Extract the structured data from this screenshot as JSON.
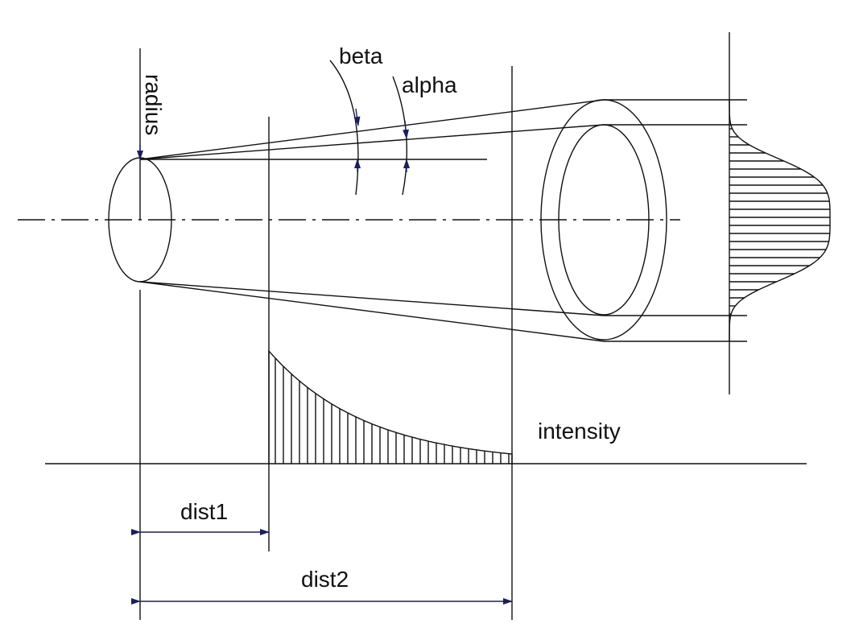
{
  "labels": {
    "radius": "radius",
    "beta": "beta",
    "alpha": "alpha",
    "intensity": "intensity",
    "dist1": "dist1",
    "dist2": "dist2"
  },
  "colors": {
    "line": "#111111",
    "arrow": "#1a1f5c"
  }
}
